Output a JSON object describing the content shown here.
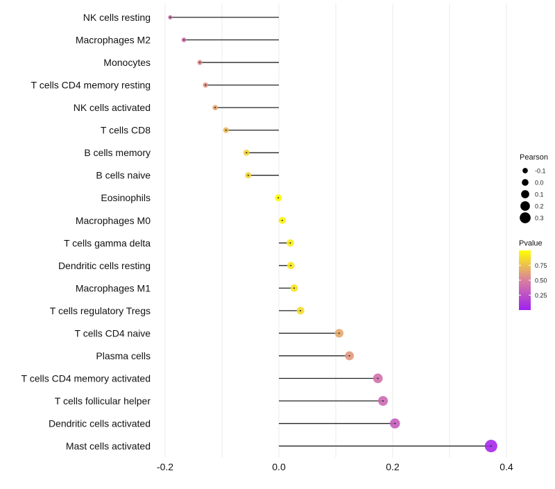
{
  "chart_data": {
    "type": "lollipop",
    "title": "",
    "xlabel": "",
    "ylabel": "",
    "xlim": [
      -0.2,
      0.4
    ],
    "x_ticks": [
      -0.2,
      0.0,
      0.2,
      0.4
    ],
    "x_tick_labels": [
      "-0.2",
      "0.0",
      "0.2",
      "0.4"
    ],
    "grid": true,
    "categories": [
      "NK cells resting",
      "Macrophages M2",
      "Monocytes",
      "T cells CD4 memory resting",
      "NK cells activated",
      "T cells CD8",
      "B cells memory",
      "B cells naive",
      "Eosinophils",
      "Macrophages M0",
      "T cells gamma delta",
      "Dendritic cells resting",
      "Macrophages M1",
      "T cells regulatory  Tregs ",
      "T cells CD4 naive",
      "Plasma cells",
      "T cells CD4 memory activated",
      "T cells follicular helper",
      "Dendritic cells activated",
      "Mast cells activated"
    ],
    "pearson": [
      -0.191,
      -0.167,
      -0.139,
      -0.129,
      -0.112,
      -0.093,
      -0.057,
      -0.054,
      -0.001,
      0.006,
      0.02,
      0.021,
      0.027,
      0.038,
      0.106,
      0.124,
      0.174,
      0.183,
      0.204,
      0.373
    ],
    "pvalue": [
      0.42,
      0.45,
      0.55,
      0.58,
      0.65,
      0.72,
      0.82,
      0.83,
      0.99,
      0.96,
      0.92,
      0.91,
      0.89,
      0.86,
      0.66,
      0.6,
      0.42,
      0.38,
      0.32,
      0.04
    ],
    "legend_size": {
      "title": "Pearson",
      "values": [
        -0.1,
        0.0,
        0.1,
        0.2,
        0.3
      ],
      "labels": [
        "-0.1",
        "0.0",
        "0.1",
        "0.2",
        "0.3"
      ]
    },
    "legend_color": {
      "title": "Pvalue",
      "ticks": [
        0.25,
        0.5,
        0.75
      ],
      "labels": [
        "0.25",
        "0.50",
        "0.75"
      ],
      "range": [
        0.0,
        1.0
      ]
    },
    "legend_position": "right",
    "colors": {
      "low": "#a020f0",
      "mid": "#d9809e",
      "high": "#ffff00"
    }
  }
}
